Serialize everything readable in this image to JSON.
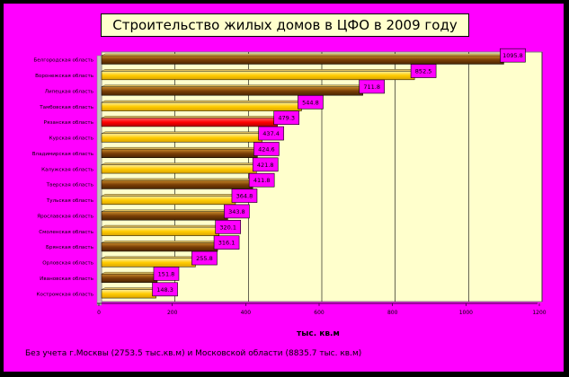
{
  "title": "Строительство жилых домов в ЦФО в 2009 году",
  "note": "Без учета г.Москвы (2753.5 тыс.кв.м) и Московской области (8835.7 тыс. кв.м)",
  "colors": {
    "background": "#ff00ff",
    "plot": "#ffffcc",
    "bar_dark": "#7a3f06",
    "bar_gold": "#ffcc00",
    "highlight": "#ff0000",
    "label_box": "#ff00ff"
  },
  "chart_data": {
    "type": "bar",
    "orientation": "horizontal",
    "title": "Строительство жилых домов в ЦФО в 2009 году",
    "xlabel": "тыс. кв.м",
    "xlim": [
      0,
      1200
    ],
    "xticks": [
      "0",
      "200",
      "400",
      "600",
      "800",
      "1000",
      "1200"
    ],
    "grid": true,
    "categories": [
      "Белгородская область",
      "Воронежская область",
      "Липецкая область",
      "Тамбовская область",
      "Рязанская область",
      "Курская область",
      "Владимирская область",
      "Калужская область",
      "Тверская область",
      "Тульская область",
      "Ярославская область",
      "Смоленская область",
      "Брянская область",
      "Орловская область",
      "Ивановская область",
      "Костромская область"
    ],
    "values": [
      1095.8,
      852.5,
      711.8,
      544.8,
      479.3,
      437.4,
      424.6,
      421.8,
      411.8,
      364.8,
      343.8,
      320.1,
      316.1,
      255.8,
      151.8,
      148.3
    ],
    "value_labels": [
      "1095.8",
      "852.5",
      "711.8",
      "544.8",
      "479.3",
      "437.4",
      "424.6",
      "421.8",
      "411.8",
      "364.8",
      "343.8",
      "320.1",
      "316.1",
      "255.8",
      "151.8",
      "148.3"
    ],
    "highlight_index": 4
  }
}
